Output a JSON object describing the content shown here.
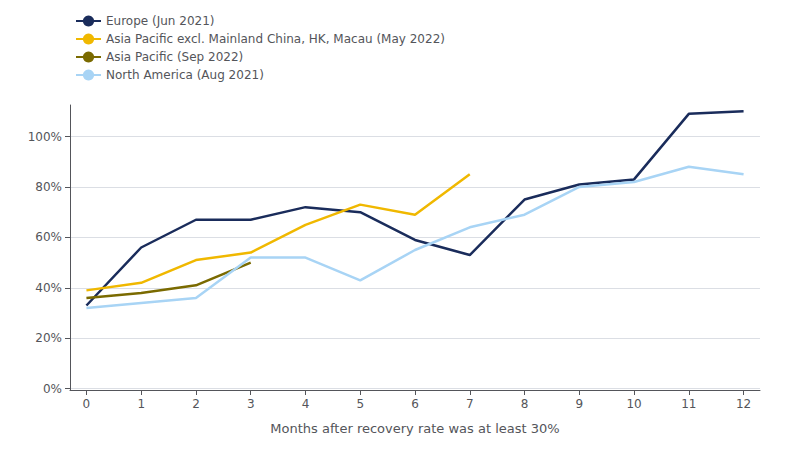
{
  "chart_data": {
    "type": "line",
    "xlabel": "Months after recovery rate was at least 30%",
    "xlim": [
      -0.3,
      12.3
    ],
    "xticks": [
      0,
      1,
      2,
      3,
      4,
      5,
      6,
      7,
      8,
      9,
      10,
      11,
      12
    ],
    "ylim": [
      -0.005,
      1.125
    ],
    "yticks": [
      {
        "value": 0.0,
        "label": "0%"
      },
      {
        "value": 0.2,
        "label": "20%"
      },
      {
        "value": 0.4,
        "label": "40%"
      },
      {
        "value": 0.6,
        "label": "60%"
      },
      {
        "value": 0.8,
        "label": "80%"
      },
      {
        "value": 1.0,
        "label": "100%"
      }
    ],
    "grid": true,
    "legend": "upper left",
    "marker": "none",
    "series": [
      {
        "name": "Europe (Jun 2021)",
        "color": "#1a2c5b",
        "x": [
          0,
          1,
          2,
          3,
          4,
          5,
          6,
          7,
          8,
          9,
          10,
          11,
          12
        ],
        "values": [
          0.33,
          0.56,
          0.67,
          0.67,
          0.72,
          0.7,
          0.59,
          0.53,
          0.75,
          0.81,
          0.83,
          1.09,
          1.1
        ]
      },
      {
        "name": "Asia Pacific excl. Mainland China, HK, Macau (May 2022)",
        "color": "#f0b800",
        "x": [
          0,
          1,
          2,
          3,
          4,
          5,
          6,
          7
        ],
        "values": [
          0.39,
          0.42,
          0.51,
          0.54,
          0.65,
          0.73,
          0.69,
          0.85
        ]
      },
      {
        "name": "Asia Pacific (Sep 2022)",
        "color": "#7a6a00",
        "x": [
          0,
          1,
          2,
          3
        ],
        "values": [
          0.36,
          0.38,
          0.41,
          0.5
        ]
      },
      {
        "name": "North America (Aug 2021)",
        "color": "#a8d4f5",
        "x": [
          0,
          1,
          2,
          3,
          4,
          5,
          6,
          7,
          8,
          9,
          10,
          11,
          12
        ],
        "values": [
          0.32,
          0.34,
          0.36,
          0.52,
          0.52,
          0.43,
          0.55,
          0.64,
          0.69,
          0.8,
          0.82,
          0.88,
          0.85
        ]
      }
    ]
  }
}
